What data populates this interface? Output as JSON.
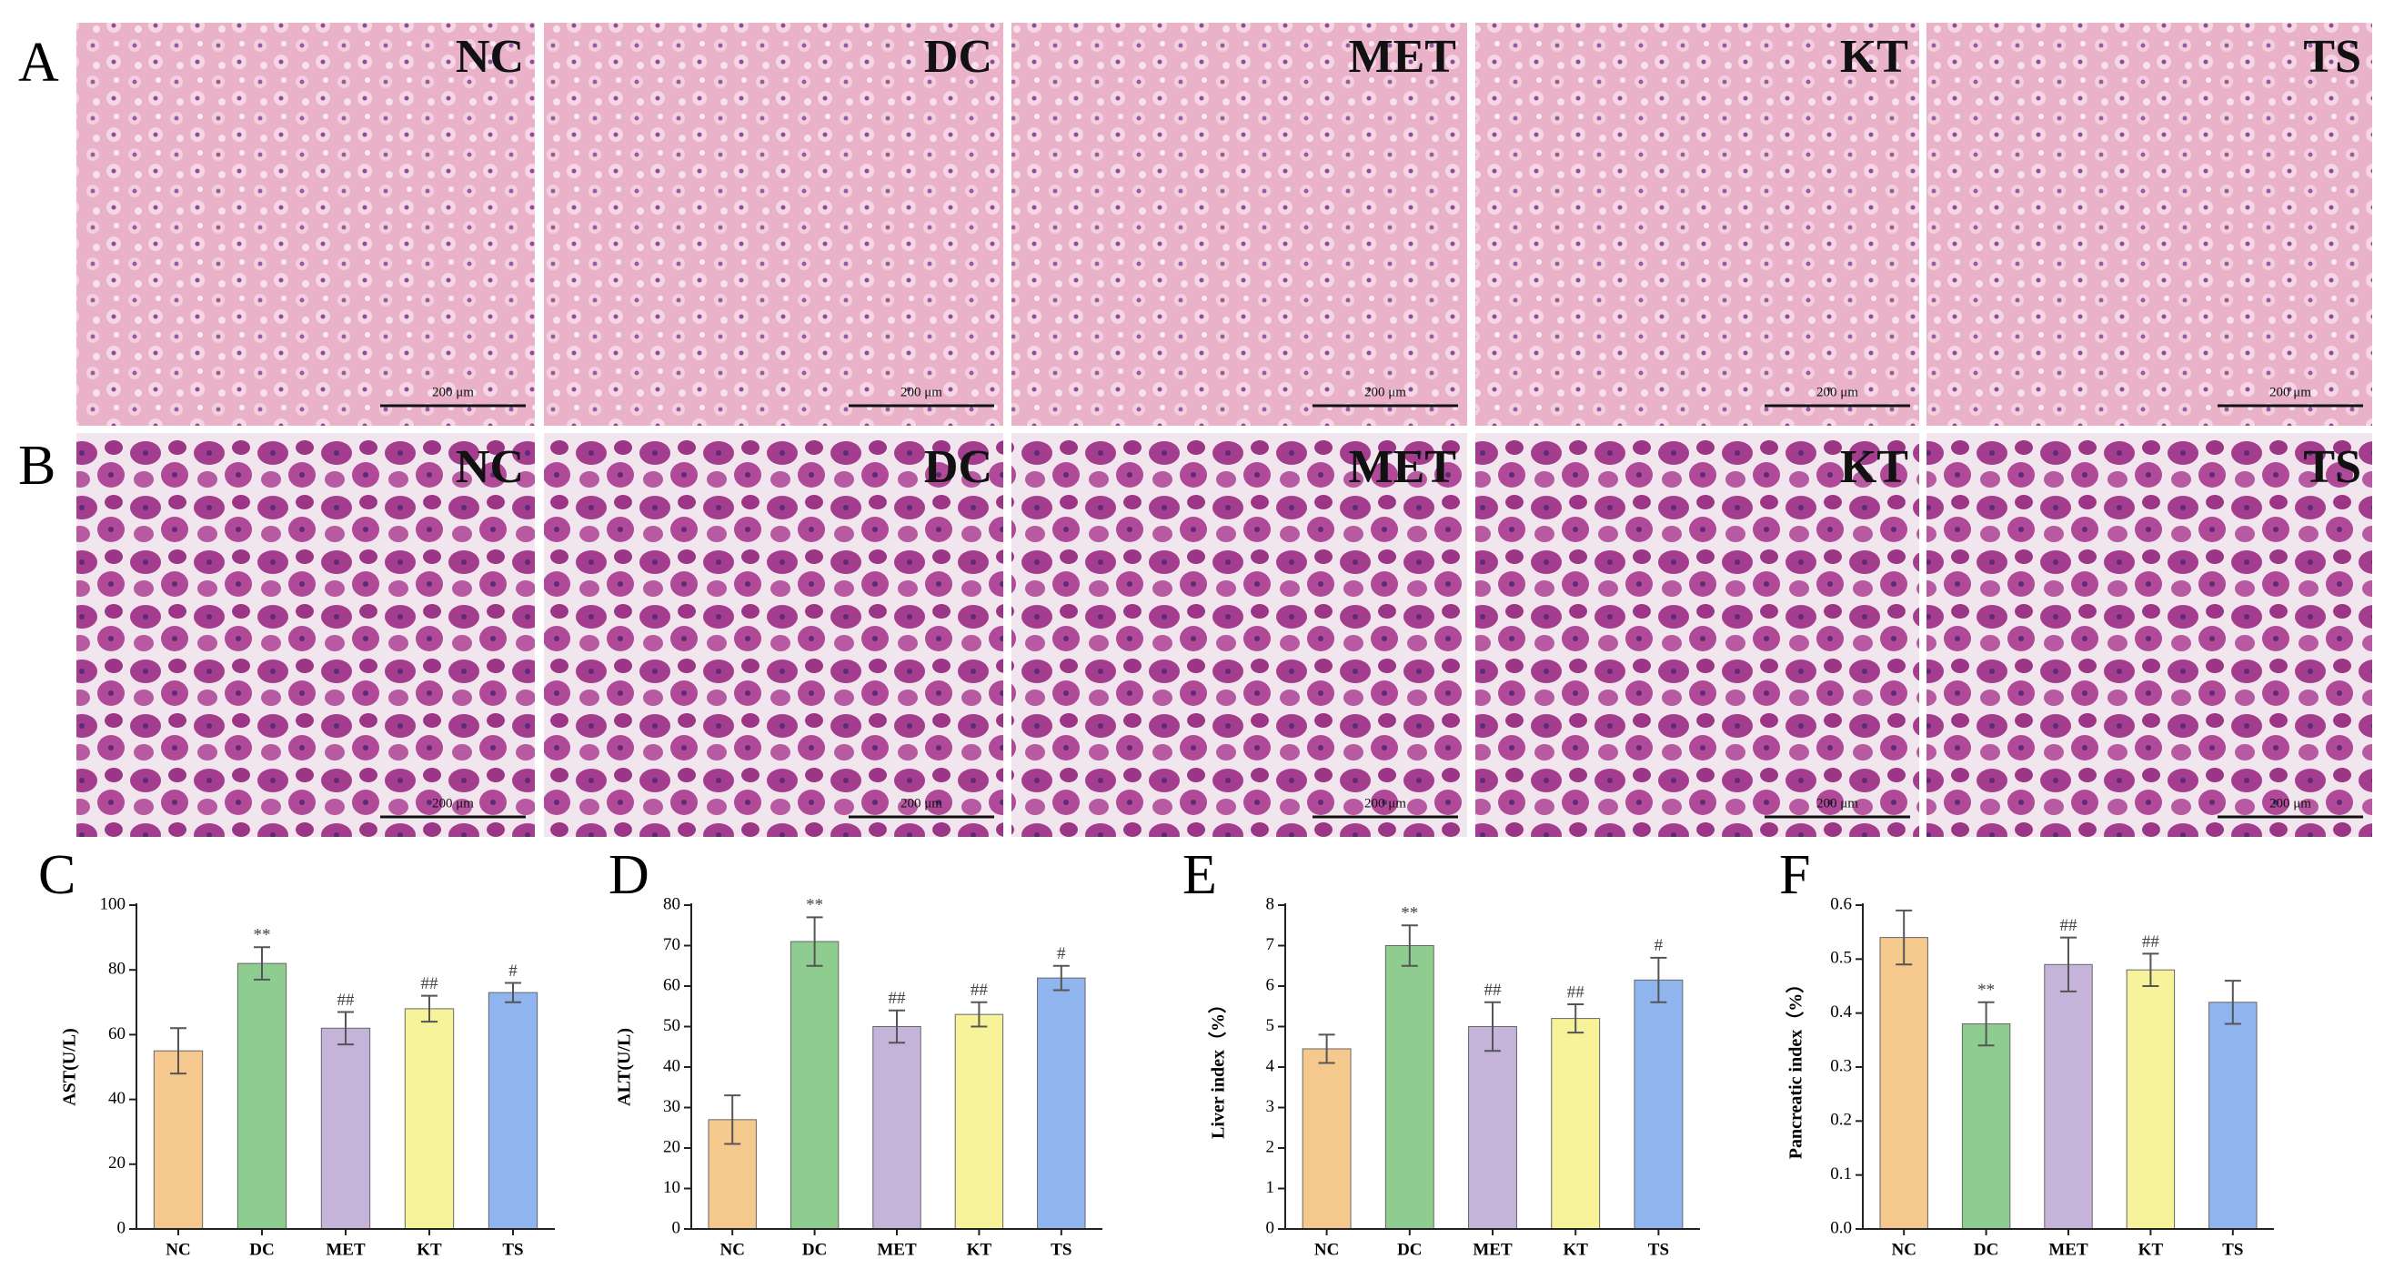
{
  "panels": [
    {
      "label": "A",
      "images": [
        {
          "group": "NC",
          "scale_bar": "200 μm"
        },
        {
          "group": "DC",
          "scale_bar": "200 μm"
        },
        {
          "group": "MET",
          "scale_bar": "200 μm"
        },
        {
          "group": "KT",
          "scale_bar": "200 μm"
        },
        {
          "group": "TS",
          "scale_bar": "200 μm"
        }
      ]
    },
    {
      "label": "B",
      "images": [
        {
          "group": "NC",
          "scale_bar": "200 μm"
        },
        {
          "group": "DC",
          "scale_bar": "200 μm"
        },
        {
          "group": "MET",
          "scale_bar": "200 μm"
        },
        {
          "group": "KT",
          "scale_bar": "200 μm"
        },
        {
          "group": "TS",
          "scale_bar": "200 μm"
        }
      ]
    }
  ],
  "chart_data": [
    {
      "type": "bar",
      "panel": "C",
      "y_label": "AST(U/L)",
      "categories": [
        "NC",
        "DC",
        "MET",
        "KT",
        "TS"
      ],
      "values": [
        55,
        82,
        62,
        68,
        73
      ],
      "errors": [
        7,
        5,
        5,
        4,
        3
      ],
      "annotations": [
        null,
        "**",
        "##",
        "##",
        "#"
      ],
      "colors": [
        "#f5c98e",
        "#8fcc8f",
        "#c5b3d9",
        "#f7f39a",
        "#8fb4ee"
      ],
      "ylim": [
        0,
        100
      ],
      "yticks": [
        0,
        20,
        40,
        60,
        80,
        100
      ]
    },
    {
      "type": "bar",
      "panel": "D",
      "y_label": "ALT(U/L)",
      "categories": [
        "NC",
        "DC",
        "MET",
        "KT",
        "TS"
      ],
      "values": [
        27,
        71,
        50,
        53,
        62
      ],
      "errors": [
        6,
        6,
        4,
        3,
        3
      ],
      "annotations": [
        null,
        "**",
        "##",
        "##",
        "#"
      ],
      "colors": [
        "#f5c98e",
        "#8fcc8f",
        "#c5b3d9",
        "#f7f39a",
        "#8fb4ee"
      ],
      "ylim": [
        0,
        80
      ],
      "yticks": [
        0,
        10,
        20,
        30,
        40,
        50,
        60,
        70,
        80
      ]
    },
    {
      "type": "bar",
      "panel": "E",
      "y_label": "Liver index（%）",
      "categories": [
        "NC",
        "DC",
        "MET",
        "KT",
        "TS"
      ],
      "values": [
        4.45,
        7.0,
        5.0,
        5.2,
        6.15
      ],
      "errors": [
        0.35,
        0.5,
        0.6,
        0.35,
        0.55
      ],
      "annotations": [
        null,
        "**",
        "##",
        "##",
        "#"
      ],
      "colors": [
        "#f5c98e",
        "#8fcc8f",
        "#c5b3d9",
        "#f7f39a",
        "#8fb4ee"
      ],
      "ylim": [
        0,
        8
      ],
      "yticks": [
        0,
        1,
        2,
        3,
        4,
        5,
        6,
        7,
        8
      ]
    },
    {
      "type": "bar",
      "panel": "F",
      "y_label": "Pancreatic index（%）",
      "categories": [
        "NC",
        "DC",
        "MET",
        "KT",
        "TS"
      ],
      "values": [
        0.54,
        0.38,
        0.49,
        0.48,
        0.42
      ],
      "errors": [
        0.05,
        0.04,
        0.05,
        0.03,
        0.04
      ],
      "annotations": [
        null,
        "**",
        "##",
        "##",
        null
      ],
      "colors": [
        "#f5c98e",
        "#8fcc8f",
        "#c5b3d9",
        "#f7f39a",
        "#8fb4ee"
      ],
      "ylim": [
        0,
        0.6
      ],
      "yticks": [
        {
          "value": 0,
          "label": "0.0"
        },
        0.1,
        0.2,
        0.3,
        0.4,
        0.5,
        0.6
      ]
    }
  ]
}
